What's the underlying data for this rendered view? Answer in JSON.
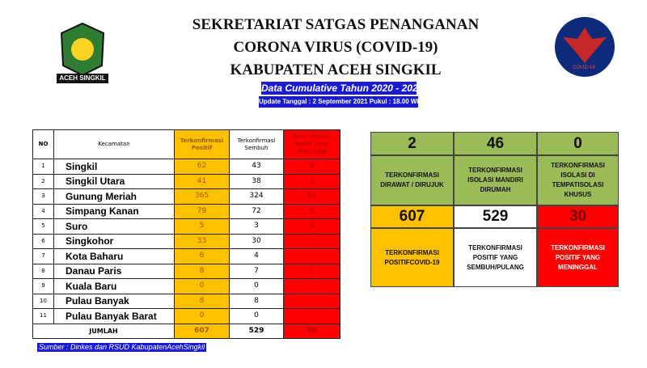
{
  "header": {
    "line1": "SEKRETARIAT SATGAS PENANGANAN",
    "line2": "CORONA VIRUS (COVID-19)",
    "line3": "KABUPATEN ACEH SINGKIL",
    "banner": "Data Cumulative Tahun 2020 - 2021",
    "update": "Update Tanggal : 2 September 2021 Pukul : 18.00 Wib"
  },
  "logos": {
    "left": "ACEH SINGKIL",
    "right": "COVID-19"
  },
  "table": {
    "headers": [
      "NO",
      "Kecamatan",
      "Terkonfirmasi Positif",
      "Terkonfirmasi Sembuh",
      "Terkonfirmasi Positif yang Meninggal"
    ],
    "rows": [
      {
        "no": "1",
        "name": "Singkil",
        "positif": "62",
        "sembuh": "43",
        "meninggal": "5"
      },
      {
        "no": "2",
        "name": "Singkil Utara",
        "positif": "41",
        "sembuh": "38",
        "meninggal": "2"
      },
      {
        "no": "3",
        "name": "Gunung Meriah",
        "positif": "365",
        "sembuh": "324",
        "meninggal": "13"
      },
      {
        "no": "4",
        "name": "Simpang Kanan",
        "positif": "79",
        "sembuh": "72",
        "meninggal": "6"
      },
      {
        "no": "5",
        "name": "Suro",
        "positif": "5",
        "sembuh": "3",
        "meninggal": "2"
      },
      {
        "no": "6",
        "name": "Singkohor",
        "positif": "33",
        "sembuh": "30",
        "meninggal": "1"
      },
      {
        "no": "7",
        "name": "Kota Baharu",
        "positif": "6",
        "sembuh": "4",
        "meninggal": ""
      },
      {
        "no": "8",
        "name": "Danau Paris",
        "positif": "8",
        "sembuh": "7",
        "meninggal": "1"
      },
      {
        "no": "9",
        "name": "Kuala Baru",
        "positif": "0",
        "sembuh": "0",
        "meninggal": ""
      },
      {
        "no": "10",
        "name": "Pulau Banyak",
        "positif": "8",
        "sembuh": "8",
        "meninggal": ""
      },
      {
        "no": "11",
        "name": "Pulau Banyak Barat",
        "positif": "0",
        "sembuh": "0",
        "meninggal": ""
      }
    ],
    "total": {
      "label": "JUMLAH",
      "positif": "607",
      "sembuh": "529",
      "meninggal": "30"
    }
  },
  "source": "Sumber : Dinkes dan RSUD KabupatenAcehSingkil",
  "summary": [
    {
      "value": "2",
      "label": "TERKONFIRMASI DIRAWAT / DIRUJUK"
    },
    {
      "value": "46",
      "label": "TERKONFIRMASI ISOLASI MANDIRI DIRUMAH"
    },
    {
      "value": "0",
      "label": "TERKONFIRMASI ISOLASI DI TEMPATISOLASI KHUSUS"
    },
    {
      "value": "607",
      "label": "TERKONFIRMASI POSITIFCOVID-19"
    },
    {
      "value": "529",
      "label": "TERKONFIRMASI POSITIF YANG SEMBUH/PULANG"
    },
    {
      "value": "30",
      "label": "TERKONFIRMASI POSITIF YANG MENINGGAL"
    }
  ],
  "colors": {
    "green": "#9bbb59",
    "yellow": "#ffc000",
    "red": "#ff0000",
    "banner": "#1a1ad6"
  }
}
